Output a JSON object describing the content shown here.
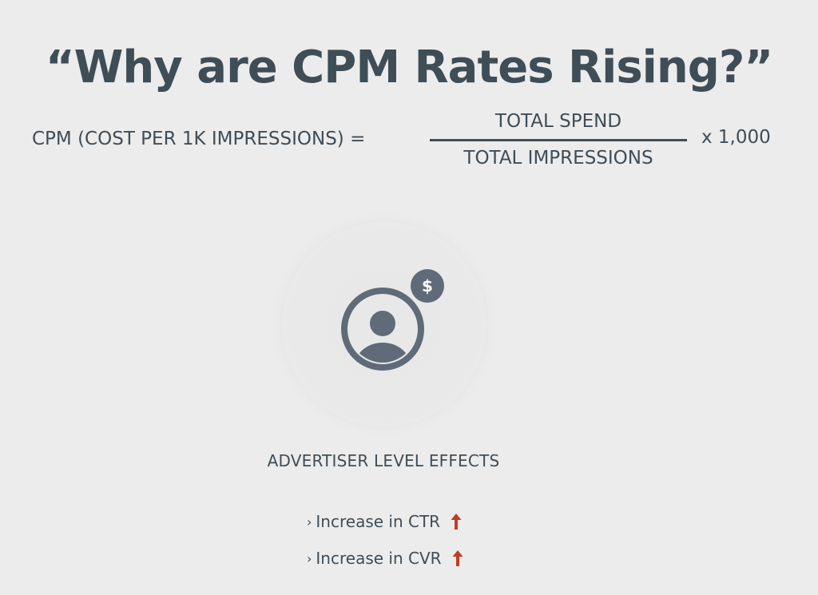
{
  "title": "“Why are CPM Rates Rising?”",
  "formula": {
    "lhs": "CPM (COST PER 1K IMPRESSIONS) =",
    "numerator": "TOTAL SPEND",
    "denominator": "TOTAL IMPRESSIONS",
    "multiplier": "x 1,000"
  },
  "icons": {
    "advertiser": "user-circle-icon",
    "badge": "dollar-icon",
    "badge_symbol": "$",
    "trend": "arrow-up-icon"
  },
  "section": {
    "label": "ADVERTISER LEVEL EFFECTS"
  },
  "effects": [
    {
      "bullet": "›",
      "text": "Increase in CTR"
    },
    {
      "bullet": "›",
      "text": "Increase in CVR"
    }
  ],
  "colors": {
    "text": "#3f4d57",
    "icon": "#5f6b78",
    "arrow": "#c23b22",
    "background": "#ececec"
  }
}
